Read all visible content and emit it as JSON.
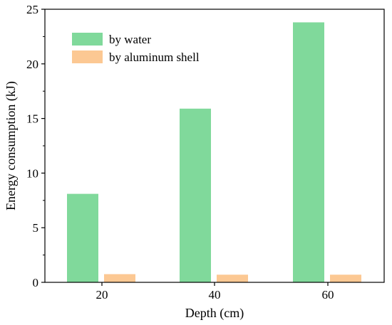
{
  "chart_data": {
    "type": "bar",
    "xlabel": "Depth (cm)",
    "ylabel": "Energy consumption (kJ)",
    "categories": [
      "20",
      "40",
      "60"
    ],
    "ylim": [
      0,
      25
    ],
    "yticks": [
      "0",
      "5",
      "10",
      "15",
      "20",
      "25"
    ],
    "grid": false,
    "legend_position": "top-left",
    "series": [
      {
        "name": "by water",
        "values": [
          8.1,
          15.9,
          23.8
        ],
        "color": "#80d99b"
      },
      {
        "name": "by aluminum shell",
        "values": [
          0.75,
          0.7,
          0.7
        ],
        "color": "#fcc893"
      }
    ]
  }
}
